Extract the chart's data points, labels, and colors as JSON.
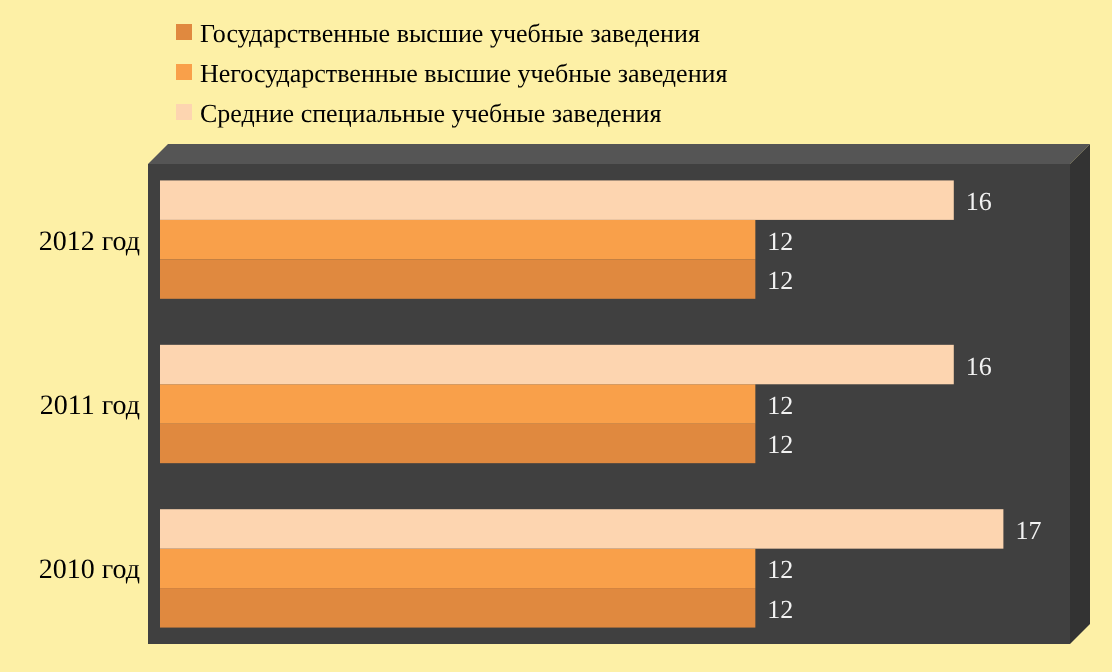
{
  "chart_data": {
    "type": "bar",
    "orientation": "horizontal",
    "categories": [
      "2012 год",
      "2011 год",
      "2010 год"
    ],
    "series": [
      {
        "name": "Государственные высшие учебные заведения",
        "color": "#e0893f",
        "values": [
          12,
          12,
          12
        ]
      },
      {
        "name": "Негосударственные высшие учебные заведения",
        "color": "#f9a04a",
        "values": [
          12,
          12,
          12
        ]
      },
      {
        "name": "Средние специальные учебные заведения",
        "color": "#fdd5b0",
        "values": [
          16,
          16,
          17
        ]
      }
    ],
    "data_labels": true,
    "legend": "top"
  }
}
